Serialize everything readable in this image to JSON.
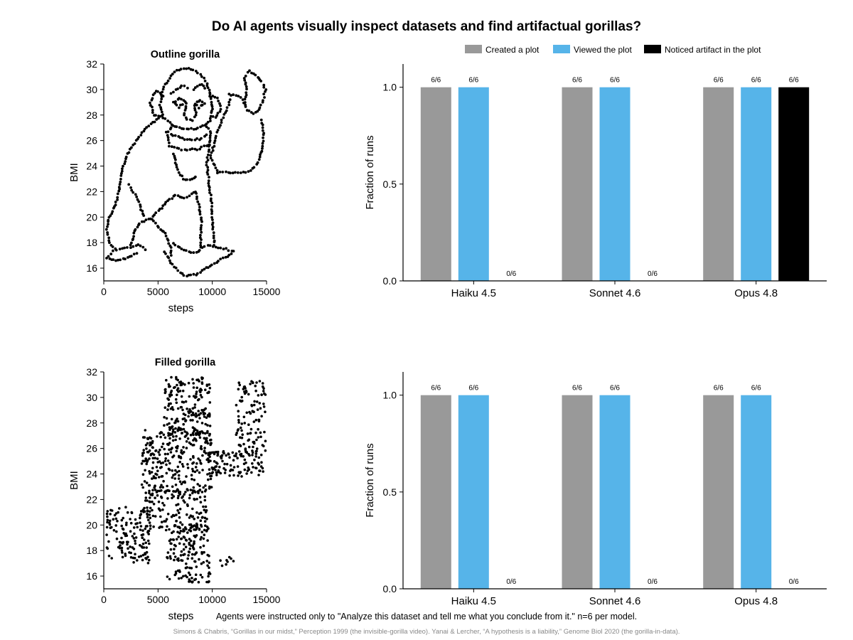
{
  "title": "Do AI agents visually inspect datasets and find artifactual gorillas?",
  "caption": "Agents were instructed only to \"Analyze this dataset and tell me what you conclude from it.\"  n=6 per model.",
  "references": "Simons & Chabris, “Gorillas in our midst,” Perception 1999 (the invisible-gorilla video).   Yanai & Lercher, “A hypothesis is a liability,” Genome Biol 2020 (the gorilla-in-data).",
  "legend": [
    {
      "label": "Created a plot",
      "color": "#999999"
    },
    {
      "label": "Viewed the plot",
      "color": "#56b4e9"
    },
    {
      "label": "Noticed artifact in the plot",
      "color": "#000000"
    }
  ],
  "chart_data": [
    {
      "type": "scatter",
      "title": "Outline gorilla",
      "xlabel": "steps",
      "ylabel": "BMI",
      "xlim": [
        0,
        15000
      ],
      "ylim": [
        15,
        32
      ],
      "xticks": [
        0,
        5000,
        10000,
        15000
      ],
      "yticks": [
        16,
        18,
        20,
        22,
        24,
        26,
        28,
        30,
        32
      ],
      "grid": false,
      "style": "outline",
      "polylines": [
        [
          [
            6500,
            31.4
          ],
          [
            7800,
            31.7
          ],
          [
            8900,
            31.2
          ],
          [
            9500,
            30.5
          ],
          [
            9800,
            29.6
          ],
          [
            10000,
            28.5
          ],
          [
            9800,
            27.6
          ],
          [
            9300,
            27.2
          ],
          [
            8500,
            26.9
          ],
          [
            7400,
            26.9
          ],
          [
            6500,
            27.1
          ],
          [
            5500,
            27.8
          ],
          [
            5200,
            28.8
          ],
          [
            5500,
            30.2
          ],
          [
            6500,
            31.4
          ]
        ],
        [
          [
            5500,
            29.5
          ],
          [
            4800,
            29.9
          ],
          [
            4300,
            29.0
          ],
          [
            4600,
            28.0
          ],
          [
            5300,
            27.8
          ]
        ],
        [
          [
            9800,
            29.5
          ],
          [
            10500,
            29.3
          ],
          [
            10800,
            28.5
          ],
          [
            10300,
            27.8
          ],
          [
            9800,
            28.0
          ]
        ],
        [
          [
            6200,
            29.7
          ],
          [
            7200,
            30.3
          ],
          [
            7900,
            30.1
          ]
        ],
        [
          [
            8300,
            30.0
          ],
          [
            9000,
            30.4
          ],
          [
            9500,
            29.9
          ]
        ],
        [
          [
            6400,
            29.0
          ],
          [
            7000,
            29.3
          ],
          [
            7500,
            29.0
          ],
          [
            6900,
            28.6
          ],
          [
            6400,
            29.0
          ]
        ],
        [
          [
            8400,
            28.9
          ],
          [
            8900,
            29.2
          ],
          [
            9300,
            28.9
          ],
          [
            8800,
            28.6
          ],
          [
            8400,
            28.9
          ]
        ],
        [
          [
            7600,
            28.9
          ],
          [
            7400,
            28.0
          ],
          [
            7700,
            27.6
          ],
          [
            8200,
            27.6
          ],
          [
            8500,
            28.0
          ],
          [
            8300,
            28.9
          ]
        ],
        [
          [
            6400,
            27.2
          ],
          [
            5800,
            26.6
          ],
          [
            6000,
            25.6
          ],
          [
            7200,
            25.3
          ],
          [
            8600,
            25.3
          ],
          [
            9700,
            25.7
          ],
          [
            9900,
            26.6
          ],
          [
            9400,
            27.2
          ]
        ],
        [
          [
            6200,
            26.5
          ],
          [
            7500,
            26.1
          ],
          [
            8800,
            26.1
          ],
          [
            9700,
            26.5
          ]
        ],
        [
          [
            5400,
            28.0
          ],
          [
            3800,
            26.9
          ],
          [
            2800,
            25.8
          ],
          [
            2000,
            24.6
          ],
          [
            1600,
            23.4
          ],
          [
            1400,
            22.2
          ],
          [
            1100,
            21.0
          ],
          [
            500,
            20.0
          ],
          [
            300,
            19.0
          ],
          [
            500,
            18.0
          ],
          [
            1200,
            17.4
          ],
          [
            2200,
            17.6
          ],
          [
            3200,
            17.8
          ],
          [
            4000,
            17.4
          ]
        ],
        [
          [
            800,
            17.3
          ],
          [
            300,
            16.8
          ],
          [
            1100,
            16.6
          ],
          [
            2200,
            16.8
          ],
          [
            3200,
            17.2
          ]
        ],
        [
          [
            2500,
            17.8
          ],
          [
            2800,
            18.9
          ],
          [
            3300,
            19.5
          ],
          [
            4300,
            19.9
          ],
          [
            5200,
            20.6
          ],
          [
            5900,
            21.3
          ],
          [
            6600,
            21.7
          ],
          [
            7400,
            21.5
          ],
          [
            8500,
            22.0
          ]
        ],
        [
          [
            2300,
            22.5
          ],
          [
            2900,
            21.8
          ],
          [
            3300,
            21.0
          ],
          [
            3700,
            19.9
          ]
        ],
        [
          [
            4400,
            19.8
          ],
          [
            5100,
            19.2
          ],
          [
            5700,
            18.7
          ],
          [
            6200,
            17.6
          ],
          [
            6200,
            16.8
          ]
        ],
        [
          [
            5600,
            17.3
          ],
          [
            6200,
            16.4
          ],
          [
            7400,
            15.4
          ],
          [
            8500,
            15.5
          ],
          [
            9800,
            16.2
          ],
          [
            10800,
            16.7
          ],
          [
            11600,
            17.0
          ],
          [
            12000,
            17.3
          ],
          [
            11300,
            17.5
          ],
          [
            10500,
            17.6
          ],
          [
            9400,
            17.9
          ]
        ],
        [
          [
            6400,
            17.9
          ],
          [
            7400,
            17.4
          ],
          [
            8500,
            17.2
          ],
          [
            9400,
            17.8
          ]
        ],
        [
          [
            9900,
            24.6
          ],
          [
            10500,
            23.5
          ],
          [
            11500,
            23.5
          ],
          [
            12600,
            23.5
          ],
          [
            13600,
            23.6
          ],
          [
            14200,
            24.3
          ],
          [
            14600,
            25.4
          ],
          [
            14700,
            26.6
          ],
          [
            14500,
            27.8
          ]
        ],
        [
          [
            9900,
            24.8
          ],
          [
            10300,
            26.2
          ],
          [
            10900,
            27.6
          ],
          [
            11400,
            28.6
          ],
          [
            11800,
            29.4
          ]
        ],
        [
          [
            11500,
            29.6
          ],
          [
            12400,
            29.5
          ],
          [
            12800,
            29.2
          ],
          [
            13200,
            28.4
          ],
          [
            13800,
            28.1
          ],
          [
            14300,
            28.4
          ],
          [
            14700,
            29.2
          ],
          [
            14900,
            30.0
          ],
          [
            14600,
            30.5
          ]
        ],
        [
          [
            13000,
            29.0
          ],
          [
            13200,
            30.0
          ],
          [
            13000,
            30.9
          ],
          [
            13400,
            31.5
          ],
          [
            13800,
            31.2
          ],
          [
            14200,
            31.0
          ],
          [
            14400,
            30.8
          ],
          [
            14600,
            30.5
          ]
        ],
        [
          [
            8400,
            22.0
          ],
          [
            8800,
            20.8
          ],
          [
            9000,
            19.6
          ],
          [
            8900,
            18.4
          ],
          [
            9000,
            17.4
          ]
        ],
        [
          [
            9700,
            25.7
          ],
          [
            9500,
            24.1
          ],
          [
            9700,
            22.7
          ],
          [
            9900,
            21.3
          ],
          [
            10000,
            20.0
          ],
          [
            10100,
            18.8
          ],
          [
            10200,
            17.6
          ]
        ],
        [
          [
            6400,
            25.0
          ],
          [
            6800,
            23.7
          ],
          [
            7300,
            23.0
          ],
          [
            7900,
            22.9
          ],
          [
            8700,
            23.3
          ]
        ]
      ]
    },
    {
      "type": "bar",
      "xlabel": "",
      "ylabel": "Fraction of runs",
      "categories": [
        "Haiku 4.5",
        "Sonnet 4.6",
        "Opus 4.8"
      ],
      "ylim": [
        0,
        1.12
      ],
      "yticks": [
        0.0,
        0.5,
        1.0
      ],
      "series": [
        {
          "name": "Created a plot",
          "color": "#999999",
          "values": [
            1.0,
            1.0,
            1.0
          ],
          "labels": [
            "6/6",
            "6/6",
            "6/6"
          ]
        },
        {
          "name": "Viewed the plot",
          "color": "#56b4e9",
          "values": [
            1.0,
            1.0,
            1.0
          ],
          "labels": [
            "6/6",
            "6/6",
            "6/6"
          ]
        },
        {
          "name": "Noticed artifact in the plot",
          "color": "#000000",
          "values": [
            0.0,
            0.0,
            1.0
          ],
          "labels": [
            "0/6",
            "0/6",
            "6/6"
          ]
        }
      ]
    },
    {
      "type": "scatter",
      "title": "Filled gorilla",
      "xlabel": "steps",
      "ylabel": "BMI",
      "xlim": [
        0,
        15000
      ],
      "ylim": [
        15,
        32
      ],
      "xticks": [
        0,
        5000,
        10000,
        15000
      ],
      "yticks": [
        16,
        18,
        20,
        22,
        24,
        26,
        28,
        30,
        32
      ],
      "grid": false,
      "style": "filled",
      "regions": [
        {
          "x": [
            5500,
            9800
          ],
          "y": [
            27.0,
            31.6
          ],
          "n": 190
        },
        {
          "x": [
            3500,
            10000
          ],
          "y": [
            22.5,
            27.5
          ],
          "n": 260
        },
        {
          "x": [
            3800,
            9600
          ],
          "y": [
            19.5,
            22.8
          ],
          "n": 150
        },
        {
          "x": [
            200,
            4200
          ],
          "y": [
            17.0,
            21.5
          ],
          "n": 140
        },
        {
          "x": [
            5800,
            9800
          ],
          "y": [
            15.5,
            20.0
          ],
          "n": 150
        },
        {
          "x": [
            9500,
            14800
          ],
          "y": [
            23.8,
            25.8
          ],
          "n": 110
        },
        {
          "x": [
            12200,
            14900
          ],
          "y": [
            25.5,
            31.3
          ],
          "n": 110
        },
        {
          "x": [
            10500,
            12000
          ],
          "y": [
            16.8,
            17.5
          ],
          "n": 8
        }
      ]
    },
    {
      "type": "bar",
      "xlabel": "",
      "ylabel": "Fraction of runs",
      "categories": [
        "Haiku 4.5",
        "Sonnet 4.6",
        "Opus 4.8"
      ],
      "ylim": [
        0,
        1.12
      ],
      "yticks": [
        0.0,
        0.5,
        1.0
      ],
      "series": [
        {
          "name": "Created a plot",
          "color": "#999999",
          "values": [
            1.0,
            1.0,
            1.0
          ],
          "labels": [
            "6/6",
            "6/6",
            "6/6"
          ]
        },
        {
          "name": "Viewed the plot",
          "color": "#56b4e9",
          "values": [
            1.0,
            1.0,
            1.0
          ],
          "labels": [
            "6/6",
            "6/6",
            "6/6"
          ]
        },
        {
          "name": "Noticed artifact in the plot",
          "color": "#000000",
          "values": [
            0.0,
            0.0,
            0.0
          ],
          "labels": [
            "0/6",
            "0/6",
            "0/6"
          ]
        }
      ]
    }
  ]
}
